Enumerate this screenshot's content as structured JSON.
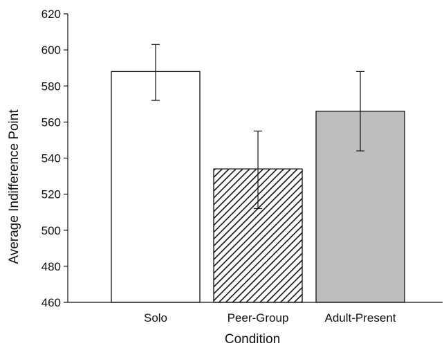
{
  "chart_data": {
    "type": "bar",
    "xlabel": "Condition",
    "ylabel": "Average Indifference Point",
    "categories": [
      "Solo",
      "Peer-Group",
      "Adult-Present"
    ],
    "values": [
      588,
      534,
      566
    ],
    "error_low": [
      572,
      512,
      544
    ],
    "error_high": [
      603,
      555,
      588
    ],
    "fills": [
      "white",
      "diagonal-hatch",
      "gray"
    ],
    "ylim": [
      460,
      620
    ],
    "yticks": [
      460,
      480,
      500,
      520,
      540,
      560,
      580,
      600,
      620
    ],
    "grid": false,
    "colors": {
      "gray_fill": "#bdbdbd",
      "stroke": "#111111",
      "white_fill": "#ffffff"
    }
  }
}
